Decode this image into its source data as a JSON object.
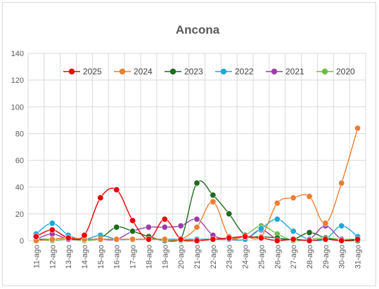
{
  "chart_data": {
    "type": "line",
    "title": "Ancona",
    "xlabel": "",
    "ylabel": "",
    "ylim": [
      0,
      140
    ],
    "yticks": [
      0,
      20,
      40,
      60,
      80,
      100,
      120,
      140
    ],
    "grid": true,
    "smooth": true,
    "legend_position": "top",
    "categories": [
      "11-ago",
      "12-ago",
      "13-ago",
      "14-ago",
      "15-ago",
      "16-ago",
      "17-ago",
      "18-ago",
      "19-ago",
      "20-ago",
      "21-ago",
      "22-ago",
      "23-ago",
      "24-ago",
      "25-ago",
      "26-ago",
      "27-ago",
      "28-ago",
      "29-ago",
      "30-ago",
      "31-ago"
    ],
    "series": [
      {
        "name": "2025",
        "color": "#ee0000",
        "values": [
          3,
          8,
          2,
          4,
          32,
          38,
          15,
          1,
          16,
          1,
          0,
          1,
          2,
          3,
          2,
          0,
          1,
          0,
          1,
          0,
          1
        ]
      },
      {
        "name": "2024",
        "color": "#ed7d31",
        "values": [
          0,
          1,
          2,
          1,
          1,
          1,
          1,
          1,
          1,
          1,
          10,
          29,
          3,
          3,
          3,
          28,
          32,
          33,
          13,
          43,
          84
        ]
      },
      {
        "name": "2023",
        "color": "#1e6b1e",
        "values": [
          1,
          1,
          2,
          1,
          2,
          10,
          7,
          3,
          0,
          1,
          43,
          34,
          20,
          4,
          3,
          2,
          1,
          6,
          2,
          0,
          0
        ]
      },
      {
        "name": "2022",
        "color": "#1ea7db",
        "values": [
          5,
          13,
          4,
          1,
          4,
          1,
          1,
          1,
          1,
          1,
          1,
          1,
          1,
          1,
          9,
          16,
          7,
          1,
          1,
          11,
          3
        ]
      },
      {
        "name": "2021",
        "color": "#9b3da8",
        "values": [
          1,
          5,
          1,
          1,
          1,
          1,
          7,
          10,
          10,
          11,
          16,
          4,
          1,
          1,
          8,
          1,
          1,
          1,
          11,
          1,
          1
        ]
      },
      {
        "name": "2020",
        "color": "#6cbd45",
        "values": [
          1,
          0,
          1,
          0,
          1,
          1,
          1,
          1,
          1,
          0,
          1,
          1,
          1,
          4,
          11,
          5,
          0,
          1,
          2,
          1,
          1
        ]
      }
    ]
  }
}
